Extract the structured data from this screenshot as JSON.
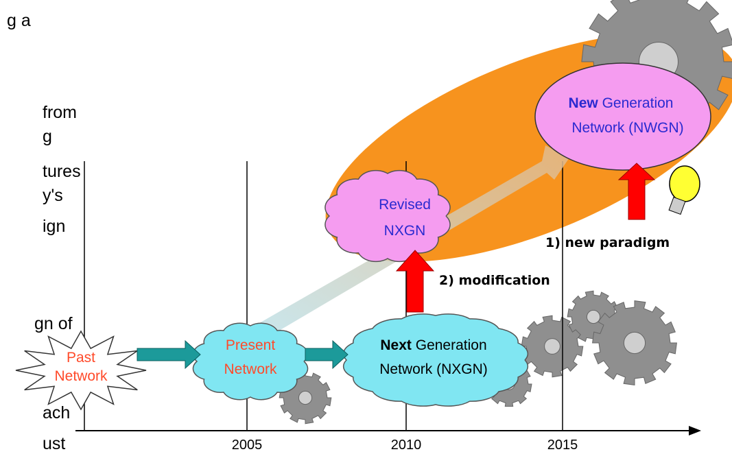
{
  "left_text": {
    "fragments": [
      "g a",
      "from",
      "g",
      "tures",
      "y's",
      "ign",
      "gn of",
      "ach",
      "ust"
    ]
  },
  "nodes": {
    "past": {
      "line1": "Past",
      "line2": "Network"
    },
    "present": {
      "line1": "Present",
      "line2": "Network"
    },
    "nxgn": {
      "bold": "Next",
      "rest": "Generation",
      "line2": "Network (NXGN)"
    },
    "revised": {
      "line1": "Revised",
      "line2": "NXGN"
    },
    "nwgn": {
      "bold": "New",
      "rest": "Generation",
      "line2": "Network (NWGN)"
    }
  },
  "labels": {
    "paradigm": "1) new paradigm",
    "modification": "2) modification"
  },
  "axis": {
    "ticks": [
      "2005",
      "2010",
      "2015"
    ]
  }
}
